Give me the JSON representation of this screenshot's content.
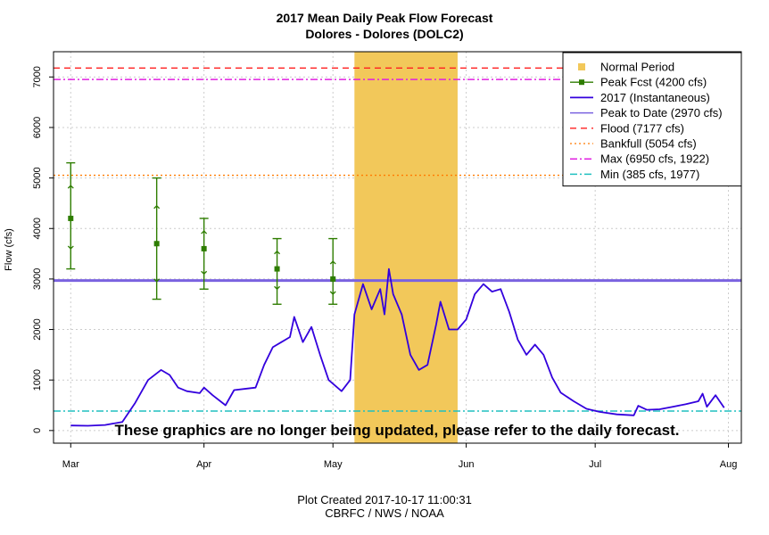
{
  "header": {
    "title": "2017 Mean Daily Peak Flow Forecast",
    "subtitle": "Dolores - Dolores (DOLC2)"
  },
  "footer": {
    "created": "Plot Created 2017-10-17 11:00:31",
    "agency": "CBRFC / NWS / NOAA"
  },
  "notice": "These graphics are no longer being updated, please refer to the daily forecast.",
  "colors": {
    "normal": "#f2c85a",
    "forecast": "#2e7d00",
    "flow": "#3300dd",
    "peak": "#7a62e0",
    "flood": "#ff2020",
    "bankfull": "#ff7a00",
    "max": "#e020e0",
    "min": "#20c0c0",
    "grid": "#cccccc"
  },
  "chart_data": {
    "type": "line",
    "title": "2017 Mean Daily Peak Flow Forecast",
    "subtitle": "Dolores - Dolores (DOLC2)",
    "ylabel": "Flow (cfs)",
    "xlabel": "",
    "xlim": [
      "2017-02-25",
      "2017-08-04"
    ],
    "ylim": [
      -250,
      7500
    ],
    "grid": true,
    "legend_position": "top-right",
    "x_ticks": [
      {
        "date": "2017-03-01",
        "label": "Mar"
      },
      {
        "date": "2017-04-01",
        "label": "Apr"
      },
      {
        "date": "2017-05-01",
        "label": "May"
      },
      {
        "date": "2017-06-01",
        "label": "Jun"
      },
      {
        "date": "2017-07-01",
        "label": "Jul"
      },
      {
        "date": "2017-08-01",
        "label": "Aug"
      }
    ],
    "y_ticks": [
      0,
      1000,
      2000,
      3000,
      4000,
      5000,
      6000,
      7000
    ],
    "normal_period": {
      "start": "2017-05-06",
      "end": "2017-05-30"
    },
    "thresholds": {
      "peak_to_date": 2970,
      "flood": 7177,
      "bankfull": 5054,
      "max": 6950,
      "min": 385
    },
    "forecasts": [
      {
        "date": "2017-03-01",
        "mid": 4200,
        "upper": 5300,
        "lower": 3200,
        "upper_q": 4850,
        "lower_q": 3600
      },
      {
        "date": "2017-03-21",
        "mid": 3700,
        "upper": 5000,
        "lower": 2600,
        "upper_q": 4450,
        "lower_q": 2950
      },
      {
        "date": "2017-04-01",
        "mid": 3600,
        "upper": 4200,
        "lower": 2800,
        "upper_q": 3950,
        "lower_q": 3100
      },
      {
        "date": "2017-04-18",
        "mid": 3200,
        "upper": 3800,
        "lower": 2500,
        "upper_q": 3550,
        "lower_q": 2800
      },
      {
        "date": "2017-05-01",
        "mid": 3000,
        "upper": 3800,
        "lower": 2500,
        "upper_q": 3350,
        "lower_q": 2700
      }
    ],
    "series": [
      {
        "name": "2017  (Instantaneous)",
        "points": [
          [
            "2017-03-01",
            100
          ],
          [
            "2017-03-05",
            95
          ],
          [
            "2017-03-09",
            110
          ],
          [
            "2017-03-13",
            170
          ],
          [
            "2017-03-16",
            550
          ],
          [
            "2017-03-19",
            1000
          ],
          [
            "2017-03-22",
            1200
          ],
          [
            "2017-03-24",
            1100
          ],
          [
            "2017-03-26",
            850
          ],
          [
            "2017-03-28",
            780
          ],
          [
            "2017-03-31",
            740
          ],
          [
            "2017-04-01",
            850
          ],
          [
            "2017-04-03",
            700
          ],
          [
            "2017-04-06",
            500
          ],
          [
            "2017-04-08",
            800
          ],
          [
            "2017-04-11",
            830
          ],
          [
            "2017-04-13",
            850
          ],
          [
            "2017-04-15",
            1300
          ],
          [
            "2017-04-17",
            1650
          ],
          [
            "2017-04-19",
            1750
          ],
          [
            "2017-04-21",
            1850
          ],
          [
            "2017-04-22",
            2250
          ],
          [
            "2017-04-24",
            1750
          ],
          [
            "2017-04-26",
            2050
          ],
          [
            "2017-04-28",
            1500
          ],
          [
            "2017-04-30",
            1000
          ],
          [
            "2017-05-03",
            780
          ],
          [
            "2017-05-05",
            1000
          ],
          [
            "2017-05-06",
            2300
          ],
          [
            "2017-05-08",
            2900
          ],
          [
            "2017-05-10",
            2400
          ],
          [
            "2017-05-12",
            2800
          ],
          [
            "2017-05-13",
            2300
          ],
          [
            "2017-05-14",
            3200
          ],
          [
            "2017-05-15",
            2700
          ],
          [
            "2017-05-17",
            2300
          ],
          [
            "2017-05-19",
            1500
          ],
          [
            "2017-05-21",
            1200
          ],
          [
            "2017-05-23",
            1300
          ],
          [
            "2017-05-25",
            2100
          ],
          [
            "2017-05-26",
            2550
          ],
          [
            "2017-05-28",
            2000
          ],
          [
            "2017-05-30",
            2000
          ],
          [
            "2017-06-01",
            2200
          ],
          [
            "2017-06-03",
            2700
          ],
          [
            "2017-06-05",
            2900
          ],
          [
            "2017-06-07",
            2750
          ],
          [
            "2017-06-09",
            2800
          ],
          [
            "2017-06-11",
            2350
          ],
          [
            "2017-06-13",
            1800
          ],
          [
            "2017-06-15",
            1500
          ],
          [
            "2017-06-17",
            1700
          ],
          [
            "2017-06-19",
            1500
          ],
          [
            "2017-06-21",
            1050
          ],
          [
            "2017-06-23",
            750
          ],
          [
            "2017-06-26",
            580
          ],
          [
            "2017-06-29",
            430
          ],
          [
            "2017-07-02",
            370
          ],
          [
            "2017-07-06",
            320
          ],
          [
            "2017-07-10",
            300
          ],
          [
            "2017-07-11",
            490
          ],
          [
            "2017-07-13",
            410
          ],
          [
            "2017-07-16",
            420
          ],
          [
            "2017-07-19",
            470
          ],
          [
            "2017-07-22",
            520
          ],
          [
            "2017-07-25",
            580
          ],
          [
            "2017-07-26",
            730
          ],
          [
            "2017-07-27",
            470
          ],
          [
            "2017-07-29",
            700
          ],
          [
            "2017-07-31",
            450
          ]
        ]
      }
    ],
    "legend": [
      {
        "key": "normal",
        "label": "Normal Period"
      },
      {
        "key": "forecast",
        "label": "Peak Fcst (4200 cfs)"
      },
      {
        "key": "flow",
        "label": "2017  (Instantaneous)"
      },
      {
        "key": "peak",
        "label": "Peak to Date (2970 cfs)"
      },
      {
        "key": "flood",
        "label": "Flood (7177 cfs)"
      },
      {
        "key": "bankfull",
        "label": "Bankfull (5054 cfs)"
      },
      {
        "key": "max",
        "label": "Max (6950 cfs, 1922)"
      },
      {
        "key": "min",
        "label": "Min (385 cfs, 1977)"
      }
    ]
  }
}
